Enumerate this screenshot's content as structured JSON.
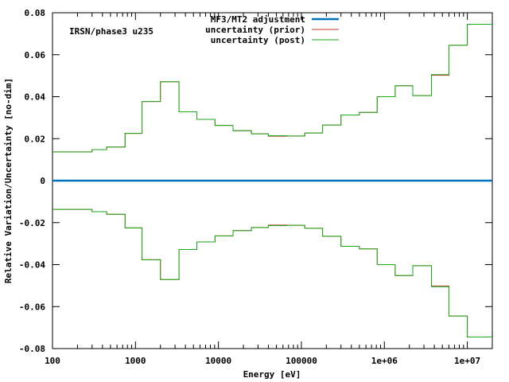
{
  "chart_data": {
    "type": "line",
    "xlabel": "Energy [eV]",
    "ylabel": "Relative Variation/Uncertainty [no-dim]",
    "annotation": "IRSN/phase3 u235",
    "x_scale": "log",
    "xlim": [
      100,
      20000000
    ],
    "ylim": [
      -0.08,
      0.08
    ],
    "x_ticks": [
      {
        "value": 100,
        "label": "100"
      },
      {
        "value": 1000,
        "label": "1000"
      },
      {
        "value": 10000,
        "label": "10000"
      },
      {
        "value": 100000,
        "label": "100000"
      },
      {
        "value": 1000000,
        "label": "1e+06"
      },
      {
        "value": 10000000,
        "label": "1e+07"
      }
    ],
    "y_ticks": [
      {
        "value": 0.08,
        "label": "0.08"
      },
      {
        "value": 0.06,
        "label": "0.06"
      },
      {
        "value": 0.04,
        "label": "0.04"
      },
      {
        "value": 0.02,
        "label": "0.02"
      },
      {
        "value": 0,
        "label": "0"
      },
      {
        "value": -0.02,
        "label": "-0.02"
      },
      {
        "value": -0.04,
        "label": "-0.04"
      },
      {
        "value": -0.06,
        "label": "-0.06"
      },
      {
        "value": -0.08,
        "label": "-0.08"
      }
    ],
    "grid": false,
    "legend_position": "top",
    "bin_edges": [
      100,
      300,
      450,
      750,
      1200,
      2000,
      3350,
      5500,
      9100,
      15000,
      25000,
      40000,
      67000,
      110000,
      180000,
      300000,
      500000,
      820000,
      1350000,
      2200000,
      3700000,
      6000000,
      10000000,
      20000000
    ],
    "series": [
      {
        "name": "MF3/MT2 adjustment",
        "color": "#0072bd",
        "values": [
          0,
          0,
          0,
          0,
          0,
          0,
          0,
          0,
          0,
          0,
          0,
          0,
          0,
          0,
          0,
          0,
          0,
          0,
          0,
          0,
          0,
          0,
          0
        ]
      },
      {
        "name": "uncertainty (prior)",
        "color": "#c0392b",
        "values": [
          0.0137,
          0.0148,
          0.016,
          0.0225,
          0.0377,
          0.0471,
          0.0328,
          0.0292,
          0.0263,
          0.0238,
          0.0223,
          0.0212,
          0.0213,
          0.0227,
          0.0265,
          0.0313,
          0.0325,
          0.04,
          0.0452,
          0.0405,
          0.0502,
          0.0645,
          0.0745
        ]
      },
      {
        "name": "uncertainty (post)",
        "color": "#1aaa1a",
        "values": [
          0.0137,
          0.0148,
          0.016,
          0.0225,
          0.0377,
          0.0471,
          0.0328,
          0.0292,
          0.0263,
          0.0238,
          0.0223,
          0.0214,
          0.0213,
          0.0227,
          0.0265,
          0.0313,
          0.0325,
          0.04,
          0.0452,
          0.0405,
          0.0505,
          0.0645,
          0.0745
        ]
      }
    ]
  }
}
